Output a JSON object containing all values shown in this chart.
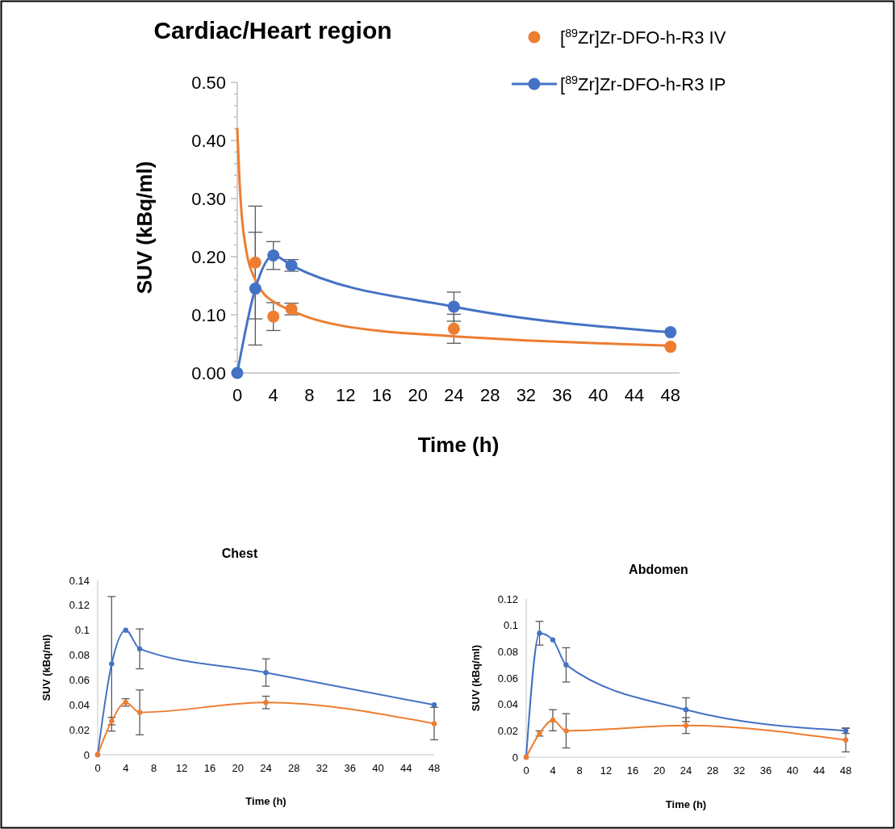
{
  "chart_data": [
    {
      "type": "scatter",
      "title": "Cardiac/Heart region",
      "xlabel": "Time (h)",
      "ylabel": "SUV (kBq/ml)",
      "xlim": [
        0,
        49
      ],
      "ylim": [
        0,
        0.5
      ],
      "xticks": [
        0,
        4,
        8,
        12,
        16,
        20,
        24,
        28,
        32,
        36,
        40,
        44,
        48
      ],
      "yticks": [
        {
          "value": 0,
          "label": "0.00"
        },
        {
          "value": 0.02,
          "label": null
        },
        {
          "value": 0.04,
          "label": null
        },
        {
          "value": 0.06,
          "label": null
        },
        {
          "value": 0.08,
          "label": null
        },
        {
          "value": 0.1,
          "label": "0.10"
        },
        {
          "value": 0.12,
          "label": null
        },
        {
          "value": 0.14,
          "label": null
        },
        {
          "value": 0.16,
          "label": null
        },
        {
          "value": 0.18,
          "label": null
        },
        {
          "value": 0.2,
          "label": "0.20"
        },
        {
          "value": 0.22,
          "label": null
        },
        {
          "value": 0.24,
          "label": null
        },
        {
          "value": 0.26,
          "label": null
        },
        {
          "value": 0.28,
          "label": null
        },
        {
          "value": 0.3,
          "label": "0.30"
        },
        {
          "value": 0.32,
          "label": null
        },
        {
          "value": 0.34,
          "label": null
        },
        {
          "value": 0.36,
          "label": null
        },
        {
          "value": 0.38,
          "label": null
        },
        {
          "value": 0.4,
          "label": "0.40"
        },
        {
          "value": 0.42,
          "label": null
        },
        {
          "value": 0.44,
          "label": null
        },
        {
          "value": 0.46,
          "label": null
        },
        {
          "value": 0.48,
          "label": null
        },
        {
          "value": 0.5,
          "label": "0.50"
        }
      ],
      "marker": "circle",
      "legend": "top right",
      "series": [
        {
          "type": "line",
          "color": "#ed7d31",
          "marker": "none",
          "x": [
            0,
            0.25,
            0.5,
            1,
            2,
            3,
            4,
            6,
            8,
            12,
            16,
            20,
            24,
            32,
            40,
            48
          ],
          "values": [
            0.42,
            0.33,
            0.27,
            0.21,
            0.16,
            0.135,
            0.123,
            0.107,
            0.095,
            0.08,
            0.072,
            0.067,
            0.063,
            0.056,
            0.051,
            0.047
          ]
        },
        {
          "type": "scatter",
          "name": "[$^{89}$Zr]Zr-DFO-h-R3 IV",
          "color": "#ed7d31",
          "x": [
            2,
            4,
            6,
            24,
            48
          ],
          "values": [
            0.19,
            0.097,
            0.11,
            0.076,
            0.045
          ],
          "errors": [
            0.097,
            0.024,
            0.01,
            0.025,
            null
          ]
        },
        {
          "type": "line",
          "name": "[$^{89}$Zr]Zr-DFO-h-R3 IP",
          "color": "#4472c4",
          "x": [
            0,
            2,
            4,
            6,
            24,
            48
          ],
          "values": [
            0,
            0.145,
            0.202,
            0.185,
            0.114,
            0.07
          ],
          "errors": [
            null,
            0.097,
            0.024,
            0.01,
            0.025,
            null
          ]
        }
      ]
    },
    {
      "type": "line",
      "title": "Chest",
      "xlabel": "Time (h)",
      "ylabel": "SUV (kBq/ml)",
      "xlim": [
        0,
        48
      ],
      "ylim": [
        0,
        0.14
      ],
      "xticks": [
        0,
        4,
        8,
        12,
        16,
        20,
        24,
        28,
        32,
        36,
        40,
        44,
        48
      ],
      "yticks": [
        0,
        0.02,
        0.04,
        0.06,
        0.08,
        0.1,
        0.12,
        0.14
      ],
      "marker": "circle",
      "x": [
        0,
        2,
        4,
        6,
        24,
        48
      ],
      "series": [
        {
          "color": "#4472c4",
          "values": [
            0,
            0.073,
            0.1,
            0.085,
            0.066,
            0.04
          ],
          "errors": [
            null,
            0.054,
            null,
            0.016,
            0.011,
            null
          ]
        },
        {
          "color": "#ed7d31",
          "values": [
            0,
            0.027,
            0.042,
            0.034,
            0.042,
            0.025
          ],
          "errors": [
            null,
            0.003,
            0.003,
            0.018,
            0.005,
            0.013
          ]
        }
      ]
    },
    {
      "type": "line",
      "title": "Abdomen",
      "xlabel": "Time (h)",
      "ylabel": "SUV (kBq/ml)",
      "xlim": [
        0,
        48
      ],
      "ylim": [
        0,
        0.12
      ],
      "xticks": [
        0,
        4,
        8,
        12,
        16,
        20,
        24,
        28,
        32,
        36,
        40,
        44,
        48
      ],
      "yticks": [
        0,
        0.02,
        0.04,
        0.06,
        0.08,
        0.1,
        0.12
      ],
      "marker": "circle",
      "x": [
        0,
        2,
        4,
        6,
        24,
        48
      ],
      "series": [
        {
          "color": "#4472c4",
          "values": [
            0,
            0.094,
            0.089,
            0.07,
            0.036,
            0.02
          ],
          "errors": [
            null,
            0.009,
            null,
            0.013,
            0.009,
            0.002
          ]
        },
        {
          "color": "#ed7d31",
          "values": [
            0,
            0.018,
            0.028,
            0.02,
            0.024,
            0.013
          ],
          "errors": [
            null,
            0.002,
            0.008,
            0.013,
            0.006,
            0.009
          ]
        }
      ]
    }
  ]
}
